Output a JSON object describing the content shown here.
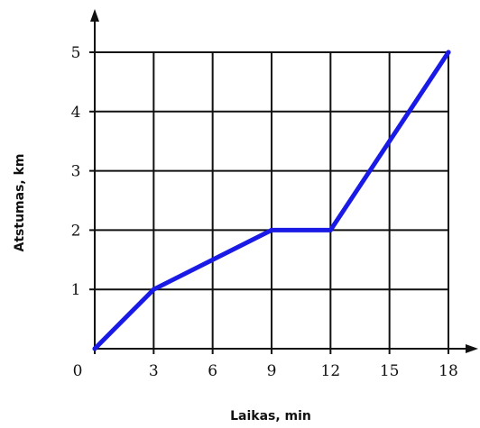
{
  "chart_data": {
    "type": "line",
    "title": "",
    "xlabel": "Laikas, min",
    "ylabel": "Atstumas, km",
    "x_ticks": [
      "0",
      "3",
      "6",
      "9",
      "12",
      "15",
      "18"
    ],
    "y_ticks": [
      "1",
      "2",
      "3",
      "4",
      "5"
    ],
    "xlim": [
      0,
      18
    ],
    "ylim": [
      0,
      5
    ],
    "grid": true,
    "series": [
      {
        "x": [
          0,
          3,
          9,
          12,
          18
        ],
        "y": [
          0,
          1,
          2,
          2,
          5
        ],
        "color": "#1a1ae6"
      }
    ],
    "colors": {
      "line": "#1a1ae6",
      "grid": "#111111",
      "axis": "#111111"
    }
  }
}
